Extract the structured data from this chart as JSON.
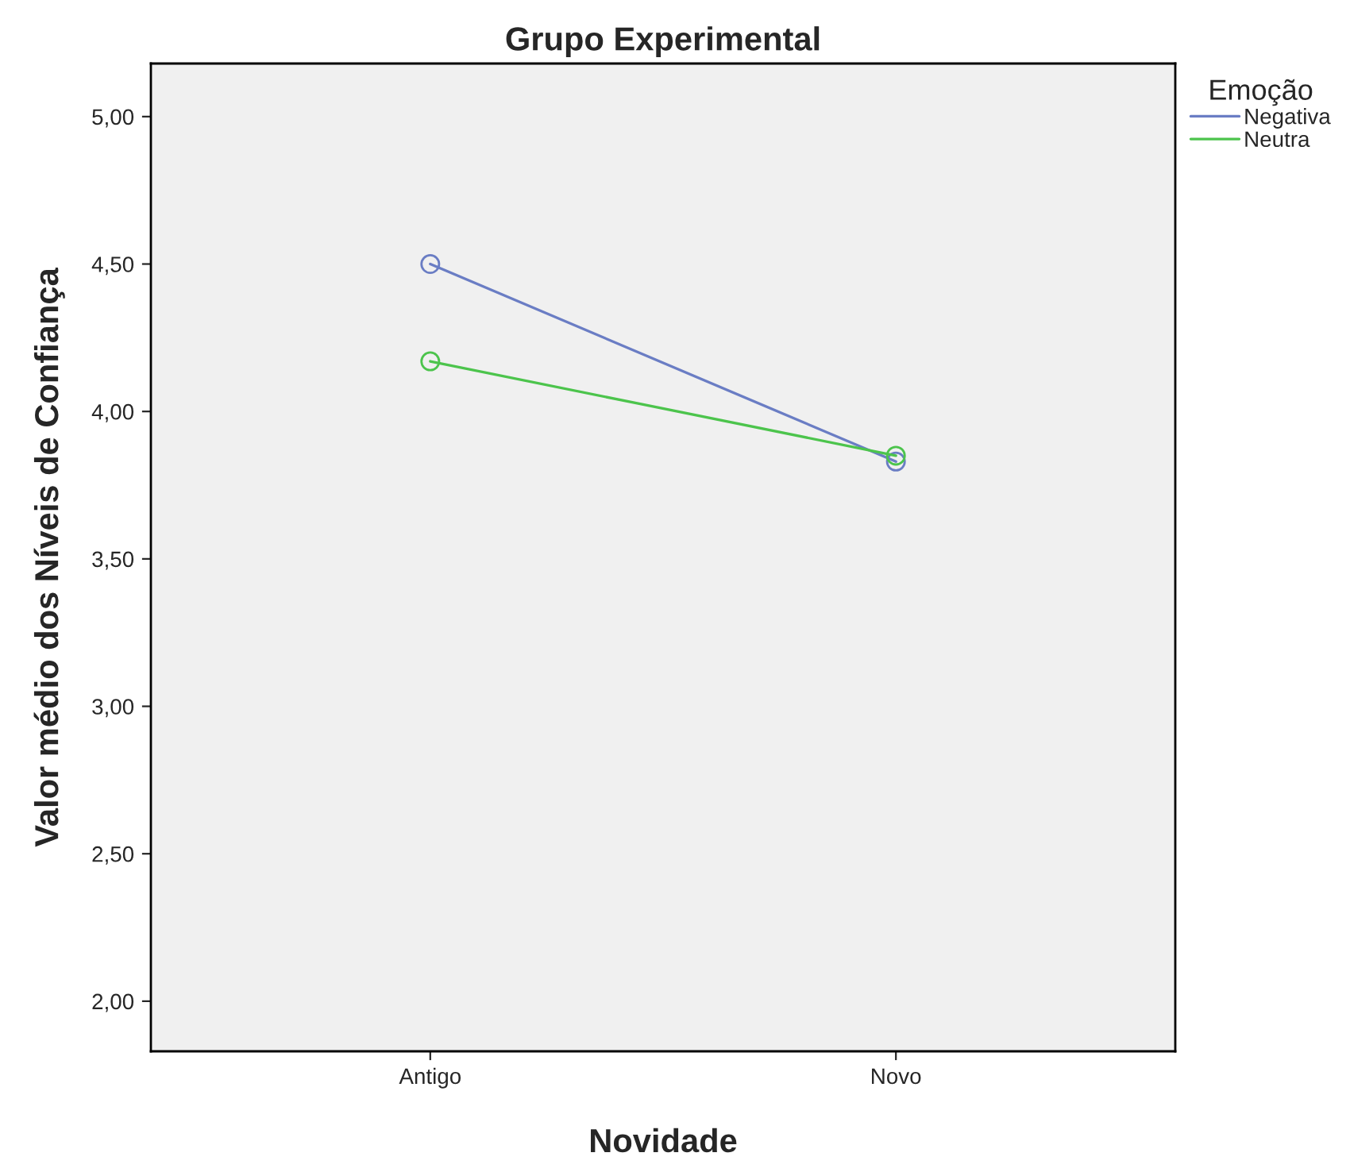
{
  "chart_data": {
    "type": "line",
    "title": "Grupo Experimental",
    "xlabel": "Novidade",
    "ylabel": "Valor médio dos Níveis de Confiança",
    "legend_title": "Emoção",
    "categories": [
      "Antigo",
      "Novo"
    ],
    "series": [
      {
        "name": "Negativa",
        "color": "#6a7dc4",
        "values": [
          4.5,
          3.83
        ]
      },
      {
        "name": "Neutra",
        "color": "#4cc44c",
        "values": [
          4.17,
          3.85
        ]
      }
    ],
    "ylim": [
      1.83,
      5.18
    ],
    "yticks": [
      {
        "value": 2,
        "label": "2,00"
      },
      {
        "value": 2.5,
        "label": "2,50"
      },
      {
        "value": 3,
        "label": "3,00"
      },
      {
        "value": 3.5,
        "label": "3,50"
      },
      {
        "value": 4,
        "label": "4,00"
      },
      {
        "value": 4.5,
        "label": "4,50"
      },
      {
        "value": 5,
        "label": "5,00"
      }
    ],
    "marker": "circle",
    "line_style": "solid",
    "grid": false,
    "legend": "top right"
  }
}
